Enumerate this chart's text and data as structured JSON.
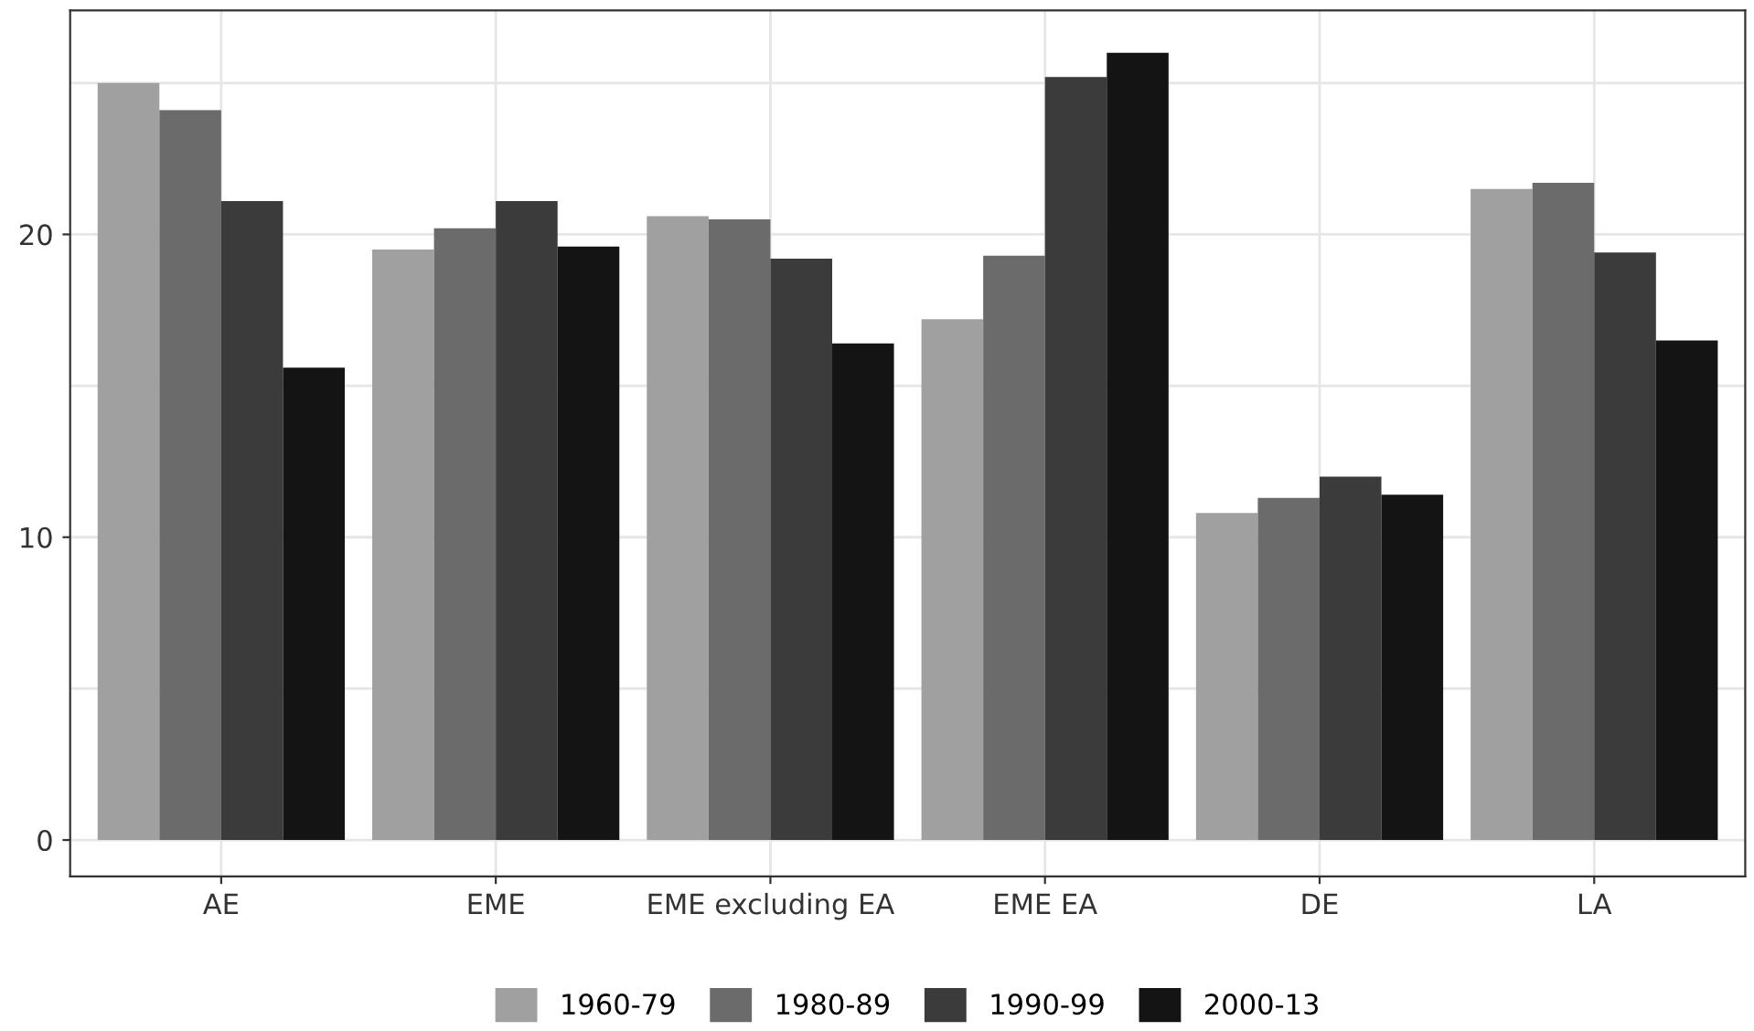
{
  "chart_data": {
    "type": "bar",
    "categories": [
      "AE",
      "EME",
      "EME excluding EA",
      "EME EA",
      "DE",
      "LA"
    ],
    "series": [
      {
        "name": "1960-79",
        "color": "#a0a0a0",
        "values": [
          25.0,
          19.5,
          20.6,
          17.2,
          10.8,
          21.5
        ]
      },
      {
        "name": "1980-89",
        "color": "#6b6b6b",
        "values": [
          24.1,
          20.2,
          20.5,
          19.3,
          11.3,
          21.7
        ]
      },
      {
        "name": "1990-99",
        "color": "#3b3b3b",
        "values": [
          21.1,
          21.1,
          19.2,
          25.2,
          12.0,
          19.4
        ]
      },
      {
        "name": "2000-13",
        "color": "#141414",
        "values": [
          15.6,
          19.6,
          16.4,
          26.0,
          11.4,
          16.5
        ]
      }
    ],
    "ylim": [
      -1.2,
      27.4
    ],
    "yticks": [
      0,
      {
        "value": 5,
        "label": null
      },
      10,
      {
        "value": 15,
        "label": null
      },
      20,
      {
        "value": 25,
        "label": null
      }
    ],
    "grid": true,
    "legend": "bottom"
  }
}
